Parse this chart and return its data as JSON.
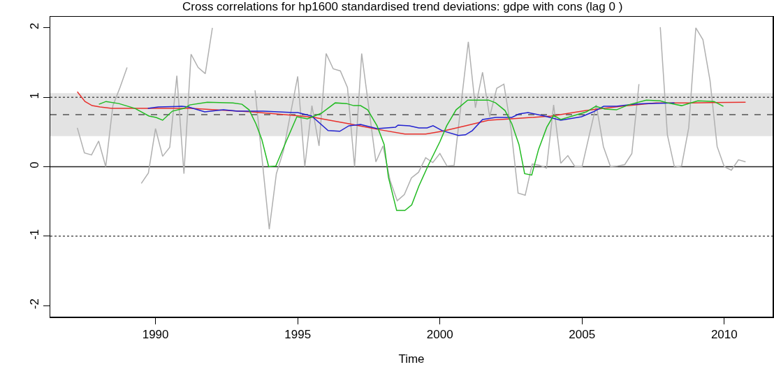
{
  "chart_data": {
    "type": "line",
    "title": "Cross correlations for hp1600 standardised trend deviations: gdpe with cons (lag 0 )",
    "xlabel": "Time",
    "xlim": [
      1986.3,
      2011.7
    ],
    "xticks": [
      1990,
      1995,
      2000,
      2005,
      2010
    ],
    "ylim": [
      -2.16,
      2.16
    ],
    "yticks": [
      -2,
      -1,
      0,
      1,
      2
    ],
    "grid": false,
    "marker": "none",
    "line_style": "solid",
    "bands": [
      {
        "axis": "y",
        "from": 0.44,
        "to": 1.06,
        "color": "#e3e3e3"
      }
    ],
    "ref_lines": [
      {
        "axis": "y",
        "value": 1,
        "color": "#555555",
        "line_style": "dotted"
      },
      {
        "axis": "y",
        "value": -1,
        "color": "#555555",
        "line_style": "dotted"
      },
      {
        "axis": "y",
        "value": 0,
        "color": "#222222",
        "line_style": "solid"
      },
      {
        "axis": "y",
        "value": 0.75,
        "color": "#555555",
        "line_style": "dashed"
      }
    ],
    "series": [
      {
        "color": "#b0b0b0",
        "x": [
          1987.25,
          1987.5,
          1987.75,
          1988,
          1988.25,
          1988.5,
          1988.75,
          1989,
          1989.25,
          1989.5,
          1989.75,
          1990,
          1990.25,
          1990.5,
          1990.75,
          1991,
          1991.25,
          1991.5,
          1991.75,
          1992,
          1992.25,
          1992.5,
          1992.75,
          1993,
          1993.25,
          1993.5,
          1993.75,
          1994,
          1994.25,
          1994.5,
          1994.75,
          1995,
          1995.25,
          1995.5,
          1995.75,
          1996,
          1996.25,
          1996.5,
          1996.75,
          1997,
          1997.25,
          1997.5,
          1997.75,
          1998,
          1998.25,
          1998.5,
          1998.75,
          1999,
          1999.25,
          1999.5,
          1999.75,
          2000,
          2000.25,
          2000.5,
          2000.75,
          2001,
          2001.25,
          2001.5,
          2001.75,
          2002,
          2002.25,
          2002.5,
          2002.75,
          2003,
          2003.25,
          2003.5,
          2003.75,
          2004,
          2004.25,
          2004.5,
          2004.75,
          2005,
          2005.25,
          2005.5,
          2005.75,
          2006,
          2006.25,
          2006.5,
          2006.75,
          2007,
          2007.25,
          2007.5,
          2007.75,
          2008,
          2008.25,
          2008.5,
          2008.75,
          2009,
          2009.25,
          2009.5,
          2009.75,
          2010,
          2010.25,
          2010.5,
          2010.75
        ],
        "values": [
          0.56,
          0.2,
          0.17,
          0.37,
          0,
          0.88,
          1.14,
          1.43,
          null,
          -0.24,
          -0.09,
          0.55,
          0.15,
          0.28,
          1.31,
          -0.1,
          1.62,
          1.43,
          1.34,
          2,
          null,
          null,
          null,
          null,
          null,
          1.1,
          0.1,
          -0.9,
          -0.1,
          0.23,
          0.77,
          1.3,
          0,
          0.88,
          0.3,
          1.63,
          1.41,
          1.38,
          1.14,
          0,
          1.63,
          0.85,
          0.07,
          0.3,
          -0.2,
          -0.49,
          -0.4,
          -0.16,
          -0.08,
          0.13,
          0.06,
          0.19,
          0.01,
          0.02,
          0.92,
          1.8,
          0.85,
          1.36,
          0.72,
          1.13,
          1.19,
          0.55,
          -0.38,
          -0.41,
          0.04,
          0.02,
          -0.02,
          0.89,
          0.05,
          0.16,
          0,
          0,
          0.45,
          0.89,
          0.29,
          0,
          0.01,
          0.03,
          0.19,
          1.19,
          null,
          null,
          2.01,
          0.46,
          -0.01,
          0.01,
          0.56,
          2,
          1.83,
          1.24,
          0.29,
          0,
          -0.05,
          0.1,
          0.07
        ]
      },
      {
        "color": "#e8302c",
        "x": [
          1987.25,
          1987.52,
          1987.77,
          1988.05,
          1988.46,
          1991.24,
          1993.37,
          1994.84,
          1995.58,
          1996.8,
          1997.79,
          1998.77,
          1999.5,
          2000.08,
          2000.9,
          2001.71,
          2002.5,
          2003.92,
          2005.15,
          2006.38,
          2007.6,
          2008.83,
          2010.75
        ],
        "values": [
          1.08,
          0.94,
          0.88,
          0.86,
          0.84,
          0.84,
          0.79,
          0.74,
          0.71,
          0.62,
          0.54,
          0.47,
          0.47,
          0.51,
          0.59,
          0.67,
          0.69,
          0.73,
          0.81,
          0.87,
          0.92,
          0.92,
          0.93
        ]
      },
      {
        "color": "#2222d0",
        "x": [
          1989.73,
          1990.1,
          1990.92,
          1991.16,
          1991.73,
          1992.39,
          1992.88,
          1993.78,
          1994.84,
          1995,
          1995.49,
          1996.07,
          1996.48,
          1996.8,
          1997.21,
          1997.79,
          1998.44,
          1998.53,
          1998.93,
          1999.26,
          1999.55,
          1999.76,
          2000.08,
          2000.65,
          2000.9,
          2001.14,
          2001.5,
          2001.96,
          2002.53,
          2002.78,
          2003.1,
          2003.68,
          2004.25,
          2004.98,
          2005.39,
          2005.76,
          2006.21,
          2006.78,
          2007.19,
          2008.25
        ],
        "values": [
          0.84,
          0.86,
          0.87,
          0.86,
          0.79,
          0.82,
          0.8,
          0.8,
          0.78,
          0.78,
          0.73,
          0.52,
          0.51,
          0.59,
          0.61,
          0.55,
          0.57,
          0.6,
          0.59,
          0.56,
          0.56,
          0.59,
          0.52,
          0.45,
          0.46,
          0.52,
          0.68,
          0.71,
          0.71,
          0.76,
          0.78,
          0.73,
          0.67,
          0.72,
          0.79,
          0.87,
          0.87,
          0.9,
          0.91,
          0.92
        ]
      },
      {
        "color": "#22bb22",
        "x": [
          1988.01,
          1988.26,
          1988.71,
          1989.28,
          1989.77,
          1990.02,
          1990.25,
          1990.59,
          1991,
          1991.2,
          1991.82,
          1992.72,
          1993.04,
          1993.29,
          1993.53,
          1993.74,
          1993.98,
          1994.23,
          1994.6,
          1994.97,
          1995.34,
          1995.83,
          1996.32,
          1996.72,
          1996.97,
          1997.21,
          1997.46,
          1997.79,
          1998.04,
          1998.19,
          1998.48,
          1998.77,
          1999.01,
          1999.26,
          1999.59,
          2000,
          2000.24,
          2000.57,
          2000.98,
          2001.71,
          2001.96,
          2002.29,
          2002.53,
          2002.78,
          2002.98,
          2003.23,
          2003.47,
          2003.76,
          2004,
          2004.25,
          2004.74,
          2005.15,
          2005.48,
          2005.8,
          2006.21,
          2006.62,
          2007.26,
          2007.75,
          2008,
          2008.5,
          2009.07,
          2009.64,
          2009.97
        ],
        "values": [
          0.9,
          0.94,
          0.91,
          0.84,
          0.73,
          0.71,
          0.67,
          0.8,
          0.84,
          0.89,
          0.93,
          0.92,
          0.9,
          0.82,
          0.62,
          0.39,
          0,
          0.01,
          0.37,
          0.72,
          0.69,
          0.77,
          0.92,
          0.91,
          0.88,
          0.88,
          0.82,
          0.59,
          0.32,
          -0.15,
          -0.63,
          -0.63,
          -0.55,
          -0.28,
          0.02,
          0.36,
          0.59,
          0.82,
          0.96,
          0.96,
          0.92,
          0.81,
          0.62,
          0.32,
          -0.1,
          -0.12,
          0.25,
          0.57,
          0.74,
          0.68,
          0.74,
          0.79,
          0.87,
          0.83,
          0.82,
          0.89,
          0.96,
          0.95,
          0.92,
          0.88,
          0.95,
          0.94,
          0.87
        ]
      }
    ]
  }
}
